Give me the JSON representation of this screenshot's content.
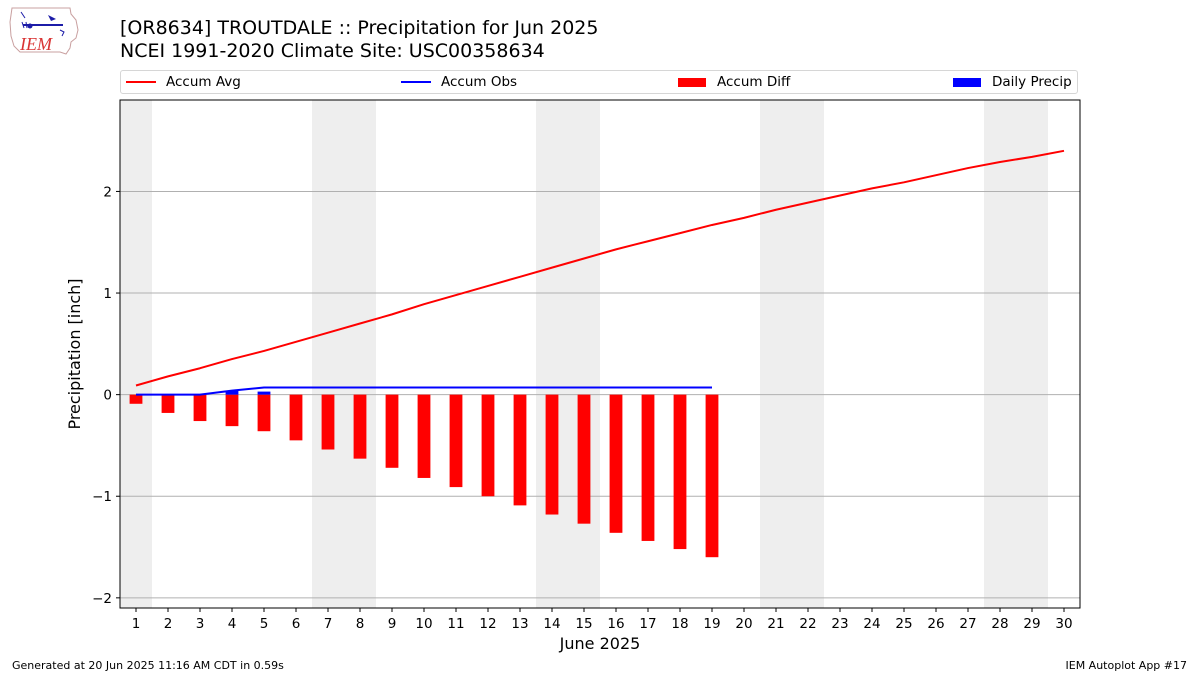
{
  "title_line1": "[OR8634] TROUTDALE :: Precipitation for Jun 2025",
  "title_line2": "NCEI 1991-2020 Climate Site: USC00358634",
  "logo_text": "IEM",
  "footer_left": "Generated at 20 Jun 2025 11:16 AM CDT in 0.59s",
  "footer_right": "IEM Autoplot App #17",
  "legend": [
    {
      "label": "Accum Avg",
      "kind": "line",
      "color": "#ff0000"
    },
    {
      "label": "Accum Obs",
      "kind": "line",
      "color": "#0000ff"
    },
    {
      "label": "Accum Diff",
      "kind": "bar",
      "color": "#ff0000"
    },
    {
      "label": "Daily Precip",
      "kind": "bar",
      "color": "#0000ff"
    }
  ],
  "chart_data": {
    "type": "bar",
    "xlabel": "June 2025",
    "ylabel": "Precipitation [inch]",
    "xlim": [
      0.5,
      30.5
    ],
    "ylim": [
      -2.1,
      2.9
    ],
    "x_ticks": [
      1,
      2,
      3,
      4,
      5,
      6,
      7,
      8,
      9,
      10,
      11,
      12,
      13,
      14,
      15,
      16,
      17,
      18,
      19,
      20,
      21,
      22,
      23,
      24,
      25,
      26,
      27,
      28,
      29,
      30
    ],
    "y_ticks": [
      -2,
      -1,
      0,
      1,
      2
    ],
    "y_tick_labels": [
      "−2",
      "−1",
      "0",
      "1",
      "2"
    ],
    "grid": "horizontal",
    "weekend_shading": [
      [
        0.5,
        1.5
      ],
      [
        6.5,
        8.5
      ],
      [
        13.5,
        15.5
      ],
      [
        20.5,
        22.5
      ],
      [
        27.5,
        29.5
      ]
    ],
    "shading_color": "#eeeeee",
    "series": [
      {
        "name": "Accum Avg",
        "kind": "line",
        "color": "#ff0000",
        "x": [
          1,
          2,
          3,
          4,
          5,
          6,
          7,
          8,
          9,
          10,
          11,
          12,
          13,
          14,
          15,
          16,
          17,
          18,
          19,
          20,
          21,
          22,
          23,
          24,
          25,
          26,
          27,
          28,
          29,
          30
        ],
        "values": [
          0.09,
          0.18,
          0.26,
          0.35,
          0.43,
          0.52,
          0.61,
          0.7,
          0.79,
          0.89,
          0.98,
          1.07,
          1.16,
          1.25,
          1.34,
          1.43,
          1.51,
          1.59,
          1.67,
          1.74,
          1.82,
          1.89,
          1.96,
          2.03,
          2.09,
          2.16,
          2.23,
          2.29,
          2.34,
          2.4
        ]
      },
      {
        "name": "Accum Obs",
        "kind": "line",
        "color": "#0000ff",
        "x": [
          1,
          2,
          3,
          4,
          5,
          6,
          7,
          8,
          9,
          10,
          11,
          12,
          13,
          14,
          15,
          16,
          17,
          18,
          19
        ],
        "values": [
          0,
          0,
          0,
          0.04,
          0.07,
          0.07,
          0.07,
          0.07,
          0.07,
          0.07,
          0.07,
          0.07,
          0.07,
          0.07,
          0.07,
          0.07,
          0.07,
          0.07,
          0.07
        ]
      },
      {
        "name": "Accum Diff",
        "kind": "bar",
        "color": "#ff0000",
        "x": [
          1,
          2,
          3,
          4,
          5,
          6,
          7,
          8,
          9,
          10,
          11,
          12,
          13,
          14,
          15,
          16,
          17,
          18,
          19
        ],
        "values": [
          -0.09,
          -0.18,
          -0.26,
          -0.31,
          -0.36,
          -0.45,
          -0.54,
          -0.63,
          -0.72,
          -0.82,
          -0.91,
          -1.0,
          -1.09,
          -1.18,
          -1.27,
          -1.36,
          -1.44,
          -1.52,
          -1.6
        ]
      },
      {
        "name": "Daily Precip",
        "kind": "bar",
        "color": "#0000ff",
        "x": [
          4,
          5
        ],
        "values": [
          0.04,
          0.03
        ]
      }
    ]
  }
}
